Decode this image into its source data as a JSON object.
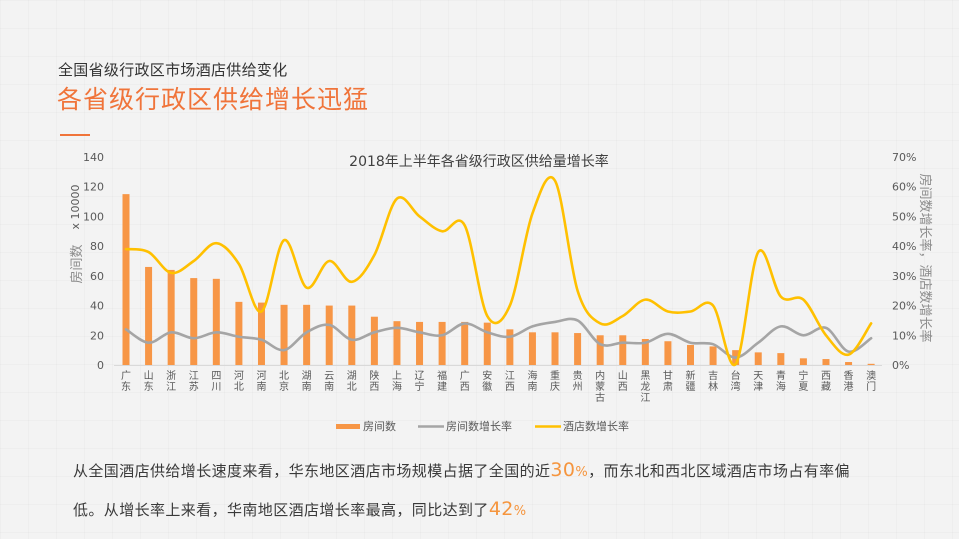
{
  "header": {
    "subtitle": "全国省级行政区市场酒店供给变化",
    "headline": "各省级行政区供给增长迅猛"
  },
  "body_text": {
    "line1_before": "从全国酒店供给增长速度来看，华东地区酒店市场规模占据了全国的近",
    "line1_highlight_num": "30",
    "line1_highlight_pct": "%",
    "line1_after": "，而东北和西北区域酒店市场占有率偏",
    "line2_before": "低。从增长率上来看，华南地区酒店增长率最高，同比达到了",
    "line2_highlight_num": "42",
    "line2_highlight_pct": "%"
  },
  "colors": {
    "accent": "#f0743a",
    "bar": "#f79646",
    "room_growth_line": "#a5a5a5",
    "hotel_growth_line": "#ffc000"
  },
  "chart_data": {
    "type": "bar",
    "title": "2018年上半年各省级行政区供给量增长率",
    "xlabel": "",
    "ylabel": "房间数",
    "ylabel_unit": "x 10000",
    "y2label": "房间数增长率，酒店数增长率",
    "ylim": [
      0,
      140
    ],
    "y2lim": [
      0,
      0.7
    ],
    "yticks": [
      0,
      20,
      40,
      60,
      80,
      100,
      120,
      140
    ],
    "y2ticks": [
      "0%",
      "10%",
      "20%",
      "30%",
      "40%",
      "50%",
      "60%",
      "70%"
    ],
    "grid": false,
    "legend_position": "bottom",
    "categories": [
      "广东",
      "山东",
      "浙江",
      "江苏",
      "四川",
      "河北",
      "河南",
      "北京",
      "湖南",
      "云南",
      "湖北",
      "陕西",
      "上海",
      "辽宁",
      "福建",
      "广西",
      "安徽",
      "江西",
      "海南",
      "重庆",
      "贵州",
      "内蒙古",
      "山西",
      "黑龙江",
      "甘肃",
      "新疆",
      "吉林",
      "台湾",
      "天津",
      "青海",
      "宁夏",
      "西藏",
      "香港",
      "澳门"
    ],
    "series": [
      {
        "name": "房间数",
        "type": "bar",
        "axis": "left",
        "values": [
          115,
          66,
          64,
          58.5,
          58,
          42.5,
          42,
          40.5,
          40.5,
          40,
          40,
          32.5,
          29.5,
          29,
          29,
          29,
          28.5,
          24,
          22,
          22,
          21.5,
          20,
          20,
          17.5,
          16,
          13.5,
          12.5,
          10,
          8.5,
          8,
          4.5,
          4,
          2,
          0.8
        ]
      },
      {
        "name": "房间数增长率",
        "type": "line",
        "axis": "right",
        "values": [
          0.12,
          0.075,
          0.11,
          0.09,
          0.11,
          0.095,
          0.085,
          0.05,
          0.11,
          0.135,
          0.085,
          0.11,
          0.125,
          0.11,
          0.1,
          0.14,
          0.11,
          0.095,
          0.13,
          0.145,
          0.15,
          0.07,
          0.075,
          0.075,
          0.105,
          0.075,
          0.07,
          0.025,
          0.075,
          0.13,
          0.1,
          0.125,
          0.045,
          0.09
        ]
      },
      {
        "name": "酒店数增长率",
        "type": "line",
        "axis": "right",
        "values": [
          0.39,
          0.38,
          0.31,
          0.35,
          0.41,
          0.34,
          0.18,
          0.42,
          0.26,
          0.35,
          0.28,
          0.37,
          0.56,
          0.5,
          0.45,
          0.47,
          0.165,
          0.2,
          0.51,
          0.62,
          0.25,
          0.14,
          0.165,
          0.22,
          0.18,
          0.18,
          0.2,
          0.003,
          0.38,
          0.23,
          0.22,
          0.1,
          0.035,
          0.14
        ]
      }
    ]
  }
}
